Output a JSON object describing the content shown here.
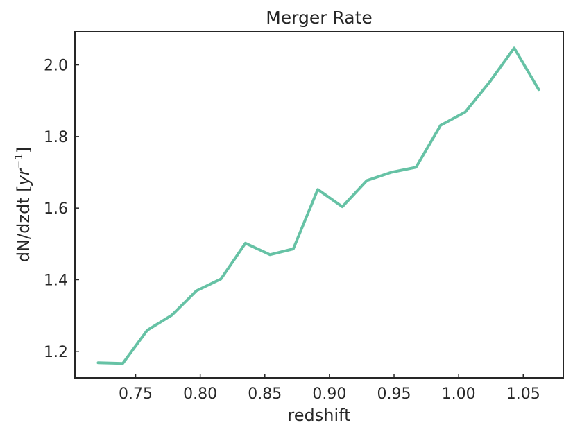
{
  "chart_data": {
    "type": "line",
    "title": "Merger Rate",
    "xlabel": "redshift",
    "ylabel": {
      "prefix": "dN/dzdt [",
      "var": "yr",
      "sup": "−1",
      "suffix": "]"
    },
    "xlim": [
      0.703,
      1.081
    ],
    "ylim": [
      1.126,
      2.094
    ],
    "xticks": [
      0.75,
      0.8,
      0.85,
      0.9,
      0.95,
      1.0,
      1.05
    ],
    "xtick_labels": [
      "0.75",
      "0.80",
      "0.85",
      "0.90",
      "0.95",
      "1.00",
      "1.05"
    ],
    "yticks": [
      1.2,
      1.4,
      1.6,
      1.8,
      2.0
    ],
    "ytick_labels": [
      "1.2",
      "1.4",
      "1.6",
      "1.8",
      "2.0"
    ],
    "grid": false,
    "color": "#66c2a5",
    "series": [
      {
        "x": [
          0.721,
          0.74,
          0.759,
          0.778,
          0.797,
          0.816,
          0.835,
          0.854,
          0.872,
          0.891,
          0.91,
          0.929,
          0.948,
          0.967,
          0.986,
          1.005,
          1.024,
          1.043,
          1.062
        ],
        "y": [
          1.168,
          1.166,
          1.259,
          1.301,
          1.369,
          1.402,
          1.502,
          1.47,
          1.486,
          1.652,
          1.604,
          1.677,
          1.7,
          1.714,
          1.831,
          1.868,
          1.952,
          2.047,
          1.931
        ]
      }
    ]
  }
}
